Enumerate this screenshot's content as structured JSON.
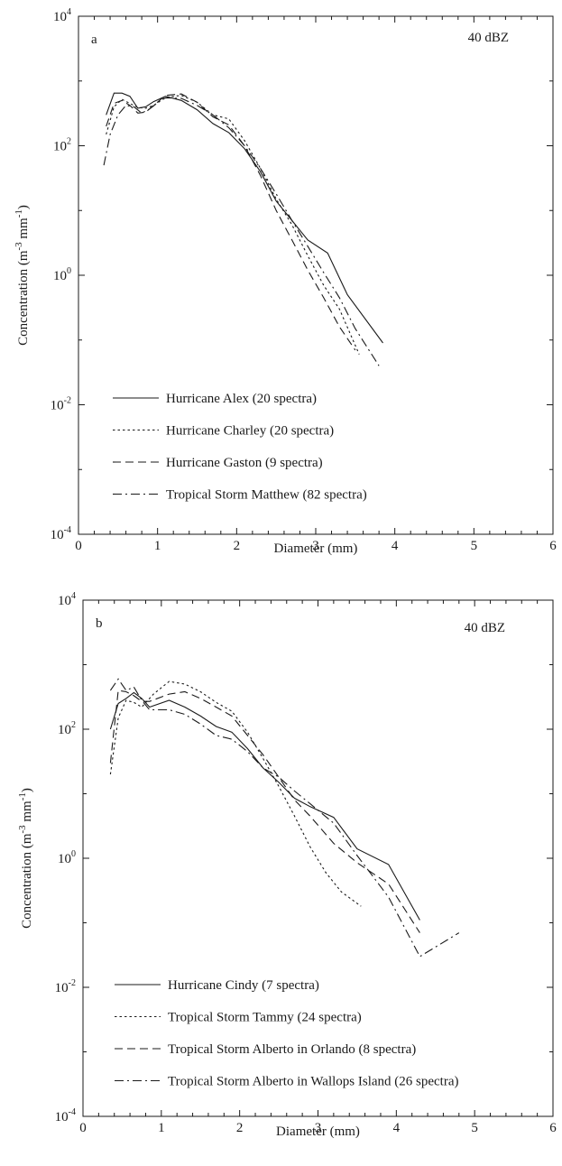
{
  "chart_data": [
    {
      "type": "line",
      "panel_label": "a",
      "annotation": "40 dBZ",
      "xlabel": "Diameter (mm)",
      "ylabel": "Concentration (m-3 mm-1)",
      "y_scale": "log",
      "xlim": [
        0,
        6
      ],
      "ylim": [
        0.0001,
        10000
      ],
      "x_ticks": [
        0,
        1,
        2,
        3,
        4,
        5,
        6
      ],
      "y_ticks": [
        0.0001,
        0.01,
        1,
        100,
        10000
      ],
      "legend_location": "lower-left",
      "series": [
        {
          "name": "Hurricane Alex (20 spectra)",
          "dash": "solid",
          "x": [
            0.35,
            0.45,
            0.55,
            0.65,
            0.75,
            0.85,
            0.95,
            1.1,
            1.3,
            1.5,
            1.7,
            1.9,
            2.1,
            2.3,
            2.5,
            2.7,
            2.9,
            3.15,
            3.4,
            3.85
          ],
          "y": [
            300,
            650,
            650,
            580,
            380,
            400,
            480,
            580,
            500,
            360,
            220,
            160,
            90,
            40,
            14,
            7,
            3.5,
            2.2,
            0.5,
            0.09
          ]
        },
        {
          "name": "Hurricane Charley (20 spectra)",
          "dash": "dotted",
          "x": [
            0.35,
            0.45,
            0.55,
            0.65,
            0.75,
            0.85,
            0.95,
            1.1,
            1.3,
            1.5,
            1.7,
            1.9,
            2.1,
            2.3,
            2.5,
            2.7,
            2.9,
            3.1,
            3.3,
            3.55
          ],
          "y": [
            150,
            400,
            520,
            450,
            390,
            380,
            420,
            560,
            600,
            470,
            300,
            260,
            120,
            45,
            15,
            6,
            2,
            0.7,
            0.3,
            0.06
          ]
        },
        {
          "name": "Hurricane Gaston (9 spectra)",
          "dash": "dashed",
          "x": [
            0.35,
            0.45,
            0.55,
            0.65,
            0.75,
            0.85,
            0.95,
            1.1,
            1.3,
            1.5,
            1.7,
            1.9,
            2.1,
            2.3,
            2.5,
            2.7,
            2.9,
            3.1,
            3.3,
            3.5
          ],
          "y": [
            200,
            450,
            500,
            420,
            320,
            330,
            420,
            600,
            630,
            470,
            280,
            210,
            100,
            35,
            10,
            3.5,
            1.2,
            0.45,
            0.16,
            0.07
          ]
        },
        {
          "name": "Tropical Storm Matthew (82 spectra)",
          "dash": "dashdot",
          "x": [
            0.32,
            0.4,
            0.5,
            0.6,
            0.7,
            0.8,
            0.9,
            1.0,
            1.1,
            1.3,
            1.5,
            1.7,
            1.9,
            2.1,
            2.3,
            2.5,
            2.7,
            2.9,
            3.1,
            3.3,
            3.5,
            3.8
          ],
          "y": [
            50,
            150,
            300,
            420,
            400,
            320,
            370,
            460,
            550,
            540,
            420,
            300,
            190,
            100,
            45,
            18,
            7,
            2.8,
            1.1,
            0.45,
            0.15,
            0.04
          ]
        }
      ]
    },
    {
      "type": "line",
      "panel_label": "b",
      "annotation": "40 dBZ",
      "xlabel": "Diameter (mm)",
      "ylabel": "Concentration (m-3 mm-1)",
      "y_scale": "log",
      "xlim": [
        0,
        6
      ],
      "ylim": [
        0.0001,
        10000
      ],
      "x_ticks": [
        0,
        1,
        2,
        3,
        4,
        5,
        6
      ],
      "y_ticks": [
        0.0001,
        0.01,
        1,
        100,
        10000
      ],
      "legend_location": "lower-left",
      "series": [
        {
          "name": "Hurricane Cindy (7 spectra)",
          "dash": "solid",
          "x": [
            0.35,
            0.45,
            0.55,
            0.65,
            0.75,
            0.85,
            1.1,
            1.3,
            1.5,
            1.7,
            1.9,
            2.1,
            2.3,
            2.5,
            2.7,
            2.9,
            3.2,
            3.5,
            3.9,
            4.3
          ],
          "y": [
            100,
            250,
            300,
            370,
            300,
            220,
            280,
            220,
            160,
            110,
            90,
            50,
            25,
            15,
            8.5,
            6.3,
            4.3,
            1.4,
            0.8,
            0.11
          ]
        },
        {
          "name": "Tropical Storm Tammy (24 spectra)",
          "dash": "dotted",
          "x": [
            0.35,
            0.45,
            0.55,
            0.65,
            0.75,
            0.9,
            1.1,
            1.3,
            1.5,
            1.7,
            1.9,
            2.1,
            2.3,
            2.5,
            2.7,
            2.9,
            3.1,
            3.3,
            3.55
          ],
          "y": [
            20,
            150,
            280,
            260,
            220,
            350,
            550,
            500,
            380,
            260,
            190,
            90,
            35,
            13,
            4.5,
            1.5,
            0.6,
            0.3,
            0.18
          ]
        },
        {
          "name": "Tropical Storm Alberto in Orlando (8 spectra)",
          "dash": "dashed",
          "x": [
            0.35,
            0.45,
            0.55,
            0.65,
            0.75,
            0.85,
            1.1,
            1.3,
            1.5,
            1.7,
            1.9,
            2.1,
            2.3,
            2.5,
            2.7,
            2.9,
            3.2,
            3.5,
            3.9,
            4.3
          ],
          "y": [
            30,
            400,
            380,
            330,
            270,
            270,
            350,
            380,
            300,
            220,
            160,
            80,
            40,
            18,
            8,
            4.5,
            1.7,
            0.85,
            0.4,
            0.07
          ]
        },
        {
          "name": "Tropical Storm Alberto in Wallops Island (26 spectra)",
          "dash": "dashdot",
          "x": [
            0.35,
            0.45,
            0.55,
            0.65,
            0.75,
            0.85,
            1.1,
            1.3,
            1.5,
            1.7,
            1.9,
            2.1,
            2.3,
            2.5,
            2.7,
            2.9,
            3.2,
            3.5,
            3.9,
            4.3,
            4.8
          ],
          "y": [
            400,
            600,
            400,
            450,
            280,
            200,
            200,
            170,
            120,
            80,
            70,
            45,
            25,
            18,
            11,
            7,
            3.5,
            1.1,
            0.25,
            0.03,
            0.07
          ]
        }
      ]
    }
  ]
}
